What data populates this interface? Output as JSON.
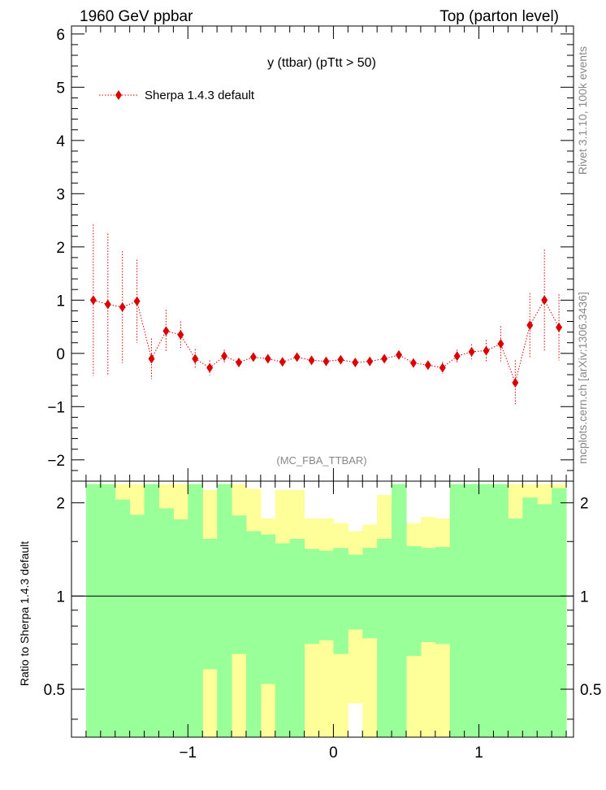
{
  "header": {
    "left": "1960 GeV ppbar",
    "right": "Top (parton level)"
  },
  "side_labels": {
    "rivet": "Rivet 3.1.10,  100k events",
    "mcplots": "mcplots.cern.ch [arXiv:1306.3436]"
  },
  "colors": {
    "series": "#dd0000",
    "band_inner": "#99ff99",
    "band_outer": "#ffff99",
    "analysis_label": "#888888"
  },
  "chart_data": [
    {
      "type": "scatter",
      "title": "y (ttbar) (pTtt > 50)",
      "analysis": "(MC_FBA_TTBAR)",
      "xlim": [
        -1.8,
        1.65
      ],
      "ylim": [
        -2.4,
        6.15
      ],
      "x_ticks": [
        -1,
        0,
        1
      ],
      "x_tick_labels": [
        "−1",
        "0",
        "1"
      ],
      "y_ticks": [
        -2,
        -1,
        0,
        1,
        2,
        3,
        4,
        5,
        6
      ],
      "y_tick_labels": [
        "−2",
        "−1",
        "0",
        "1",
        "2",
        "3",
        "4",
        "5",
        "6"
      ],
      "legend": {
        "label": "Sherpa 1.4.3 default",
        "position": "top-left"
      },
      "series": [
        {
          "name": "Sherpa 1.4.3 default",
          "x": [
            -1.65,
            -1.55,
            -1.45,
            -1.35,
            -1.25,
            -1.15,
            -1.05,
            -0.95,
            -0.85,
            -0.75,
            -0.65,
            -0.55,
            -0.45,
            -0.35,
            -0.25,
            -0.15,
            -0.05,
            0.05,
            0.15,
            0.25,
            0.35,
            0.45,
            0.55,
            0.65,
            0.75,
            0.85,
            0.95,
            1.05,
            1.15,
            1.25,
            1.35,
            1.45,
            1.55
          ],
          "y": [
            1.0,
            0.92,
            0.87,
            0.98,
            -0.1,
            0.42,
            0.35,
            -0.1,
            -0.27,
            -0.05,
            -0.17,
            -0.07,
            -0.1,
            -0.16,
            -0.07,
            -0.13,
            -0.15,
            -0.12,
            -0.17,
            -0.15,
            -0.1,
            -0.03,
            -0.18,
            -0.22,
            -0.27,
            -0.05,
            0.03,
            0.05,
            0.18,
            -0.55,
            0.53,
            1.0,
            0.49
          ],
          "err": [
            1.42,
            1.33,
            1.05,
            0.78,
            0.38,
            0.4,
            0.25,
            0.18,
            0.14,
            0.12,
            0.08,
            0.07,
            0.06,
            0.06,
            0.06,
            0.06,
            0.06,
            0.06,
            0.06,
            0.06,
            0.06,
            0.06,
            0.07,
            0.08,
            0.11,
            0.12,
            0.14,
            0.2,
            0.33,
            0.42,
            0.6,
            0.95,
            0.62
          ]
        }
      ]
    },
    {
      "type": "area",
      "ylabel": "Ratio to Sherpa 1.4.3 default",
      "xlim": [
        -1.8,
        1.65
      ],
      "ylim": [
        0.35,
        2.35
      ],
      "x_ticks": [
        -1,
        0,
        1
      ],
      "y_ticks": [
        0.5,
        1,
        2
      ],
      "y_tick_labels": [
        "0.5",
        "1",
        "2"
      ],
      "reference_line": 1,
      "bin_edges": [
        -1.7,
        -1.6,
        -1.5,
        -1.4,
        -1.3,
        -1.2,
        -1.1,
        -1.0,
        -0.9,
        -0.8,
        -0.7,
        -0.6,
        -0.5,
        -0.4,
        -0.3,
        -0.2,
        -0.1,
        0.0,
        0.1,
        0.2,
        0.3,
        0.4,
        0.5,
        0.6,
        0.7,
        0.8,
        0.9,
        1.0,
        1.1,
        1.2,
        1.3,
        1.4,
        1.5,
        1.6
      ],
      "inner_band": {
        "lo": [
          0.35,
          0.35,
          0.35,
          0.35,
          0.35,
          0.35,
          0.35,
          0.35,
          0.58,
          0.35,
          0.65,
          0.35,
          0.52,
          0.35,
          0.35,
          0.7,
          0.72,
          0.65,
          0.78,
          0.73,
          0.35,
          0.35,
          0.64,
          0.71,
          0.7,
          0.35,
          0.35,
          0.35,
          0.35,
          0.35,
          0.35,
          0.35,
          0.35
        ],
        "hi": [
          2.3,
          2.3,
          2.05,
          1.83,
          2.3,
          1.92,
          1.77,
          2.3,
          1.53,
          2.3,
          1.82,
          1.62,
          1.58,
          1.48,
          1.53,
          1.42,
          1.4,
          1.43,
          1.36,
          1.43,
          1.53,
          2.3,
          1.45,
          1.43,
          1.44,
          2.3,
          2.3,
          2.3,
          2.3,
          1.78,
          2.08,
          1.98,
          2.23
        ]
      },
      "outer_band": {
        "lo": [
          0.35,
          0.35,
          0.35,
          0.35,
          0.35,
          0.35,
          0.35,
          0.35,
          0.35,
          0.35,
          0.35,
          0.35,
          0.35,
          0.35,
          0.35,
          0.35,
          0.35,
          0.35,
          0.45,
          0.35,
          0.35,
          0.35,
          0.35,
          0.35,
          0.35,
          0.35,
          0.35,
          0.35,
          0.35,
          0.35,
          0.35,
          0.35,
          0.35
        ],
        "hi": [
          2.3,
          2.3,
          2.3,
          2.3,
          2.3,
          2.3,
          2.3,
          2.3,
          2.2,
          1.78,
          2.3,
          2.22,
          1.78,
          2.2,
          2.2,
          1.78,
          1.78,
          1.72,
          1.62,
          1.7,
          2.12,
          2.3,
          1.72,
          1.8,
          1.78,
          2.3,
          2.3,
          2.3,
          2.3,
          2.3,
          2.3,
          2.3,
          2.3
        ]
      }
    }
  ]
}
